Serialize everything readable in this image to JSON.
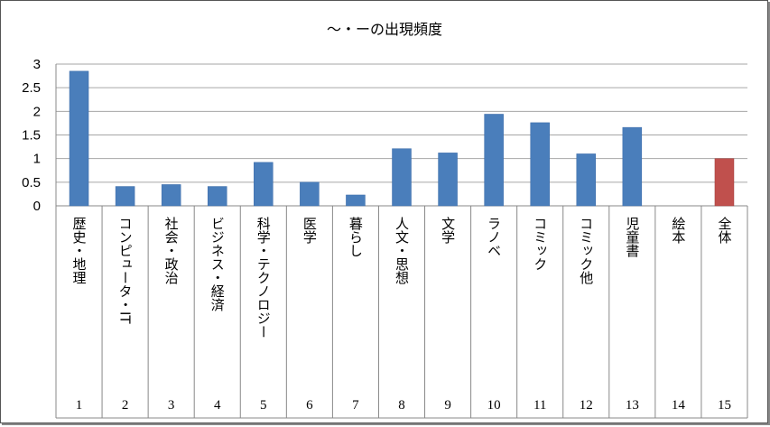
{
  "chart_data": {
    "type": "bar",
    "title": "～・ーの出現頻度",
    "xlabel": "",
    "ylabel": "",
    "ylim": [
      0,
      3
    ],
    "yticks": [
      "0",
      "0.5",
      "1",
      "1.5",
      "2",
      "2.5",
      "3"
    ],
    "grid": true,
    "legend": "none",
    "categories": [
      "歴史・地理",
      "コンピュータ・IT",
      "社会・政治",
      "ビジネス・経済",
      "科学・テクノロジー",
      "医学",
      "暮らし",
      "人文・思想",
      "文学",
      "ラノベ",
      "コミック",
      "コミック他",
      "児童書",
      "絵本",
      "全体"
    ],
    "numbers": [
      "1",
      "2",
      "3",
      "4",
      "5",
      "6",
      "7",
      "8",
      "9",
      "10",
      "11",
      "12",
      "13",
      "14",
      "15"
    ],
    "values": [
      2.85,
      0.41,
      0.45,
      0.41,
      0.92,
      0.5,
      0.23,
      1.21,
      1.12,
      1.94,
      1.76,
      1.1,
      1.66,
      0,
      1.0
    ],
    "colors": {
      "default": "#4a7ebb",
      "highlight": "#c0504d",
      "highlight_index": 14
    }
  }
}
